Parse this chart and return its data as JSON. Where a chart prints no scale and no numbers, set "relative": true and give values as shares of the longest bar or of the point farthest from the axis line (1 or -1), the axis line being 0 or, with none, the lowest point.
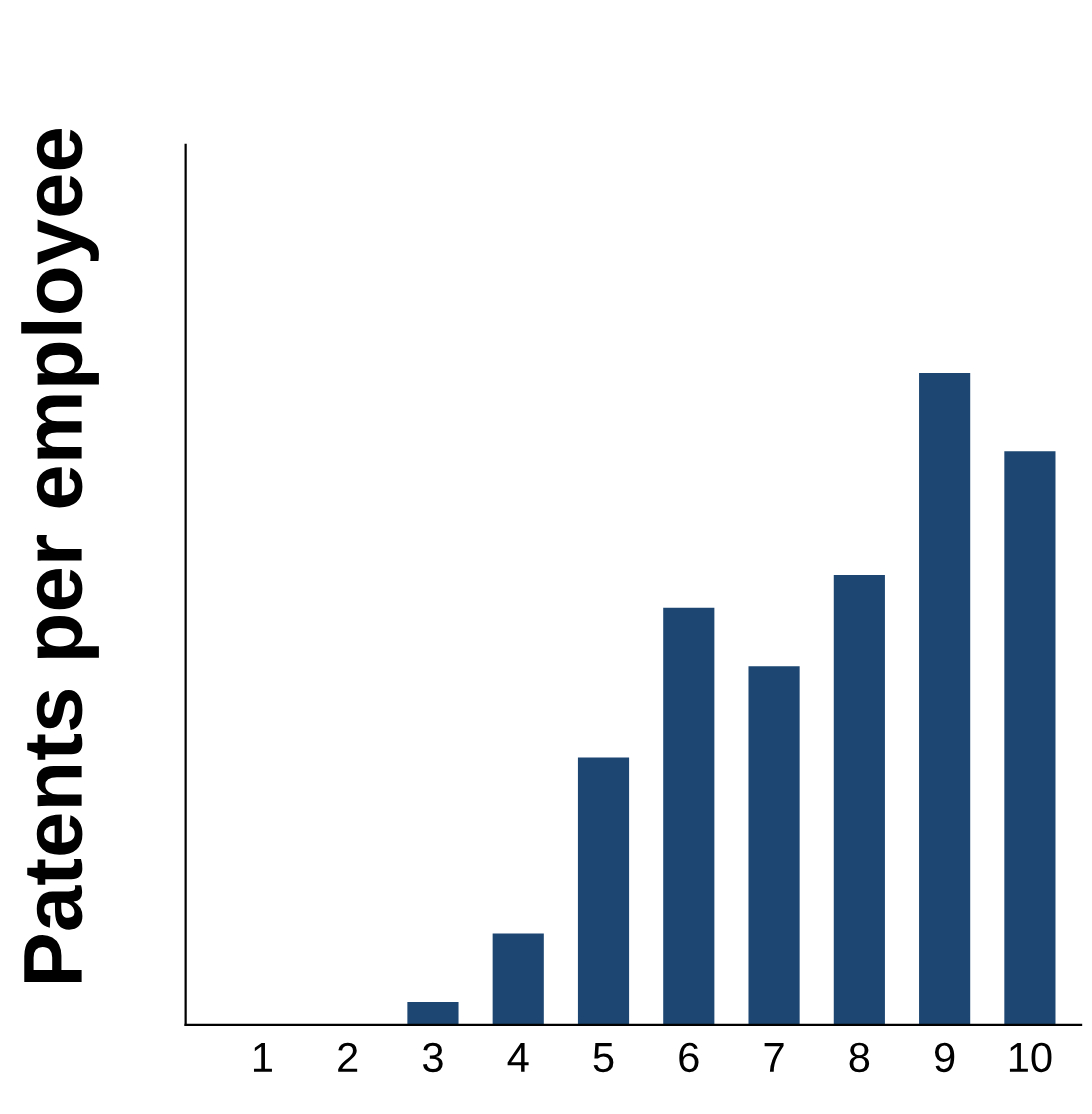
{
  "chart_data": {
    "type": "bar",
    "ylabel": "Patents per employee",
    "relative": true,
    "categories": [
      "1",
      "2",
      "3",
      "4",
      "5",
      "6",
      "7",
      "8",
      "9",
      "10"
    ],
    "values": [
      0,
      0,
      0.035,
      0.14,
      0.41,
      0.64,
      0.55,
      0.69,
      1,
      0.88
    ],
    "color": "#1d4772",
    "grid": false,
    "legend": false
  }
}
